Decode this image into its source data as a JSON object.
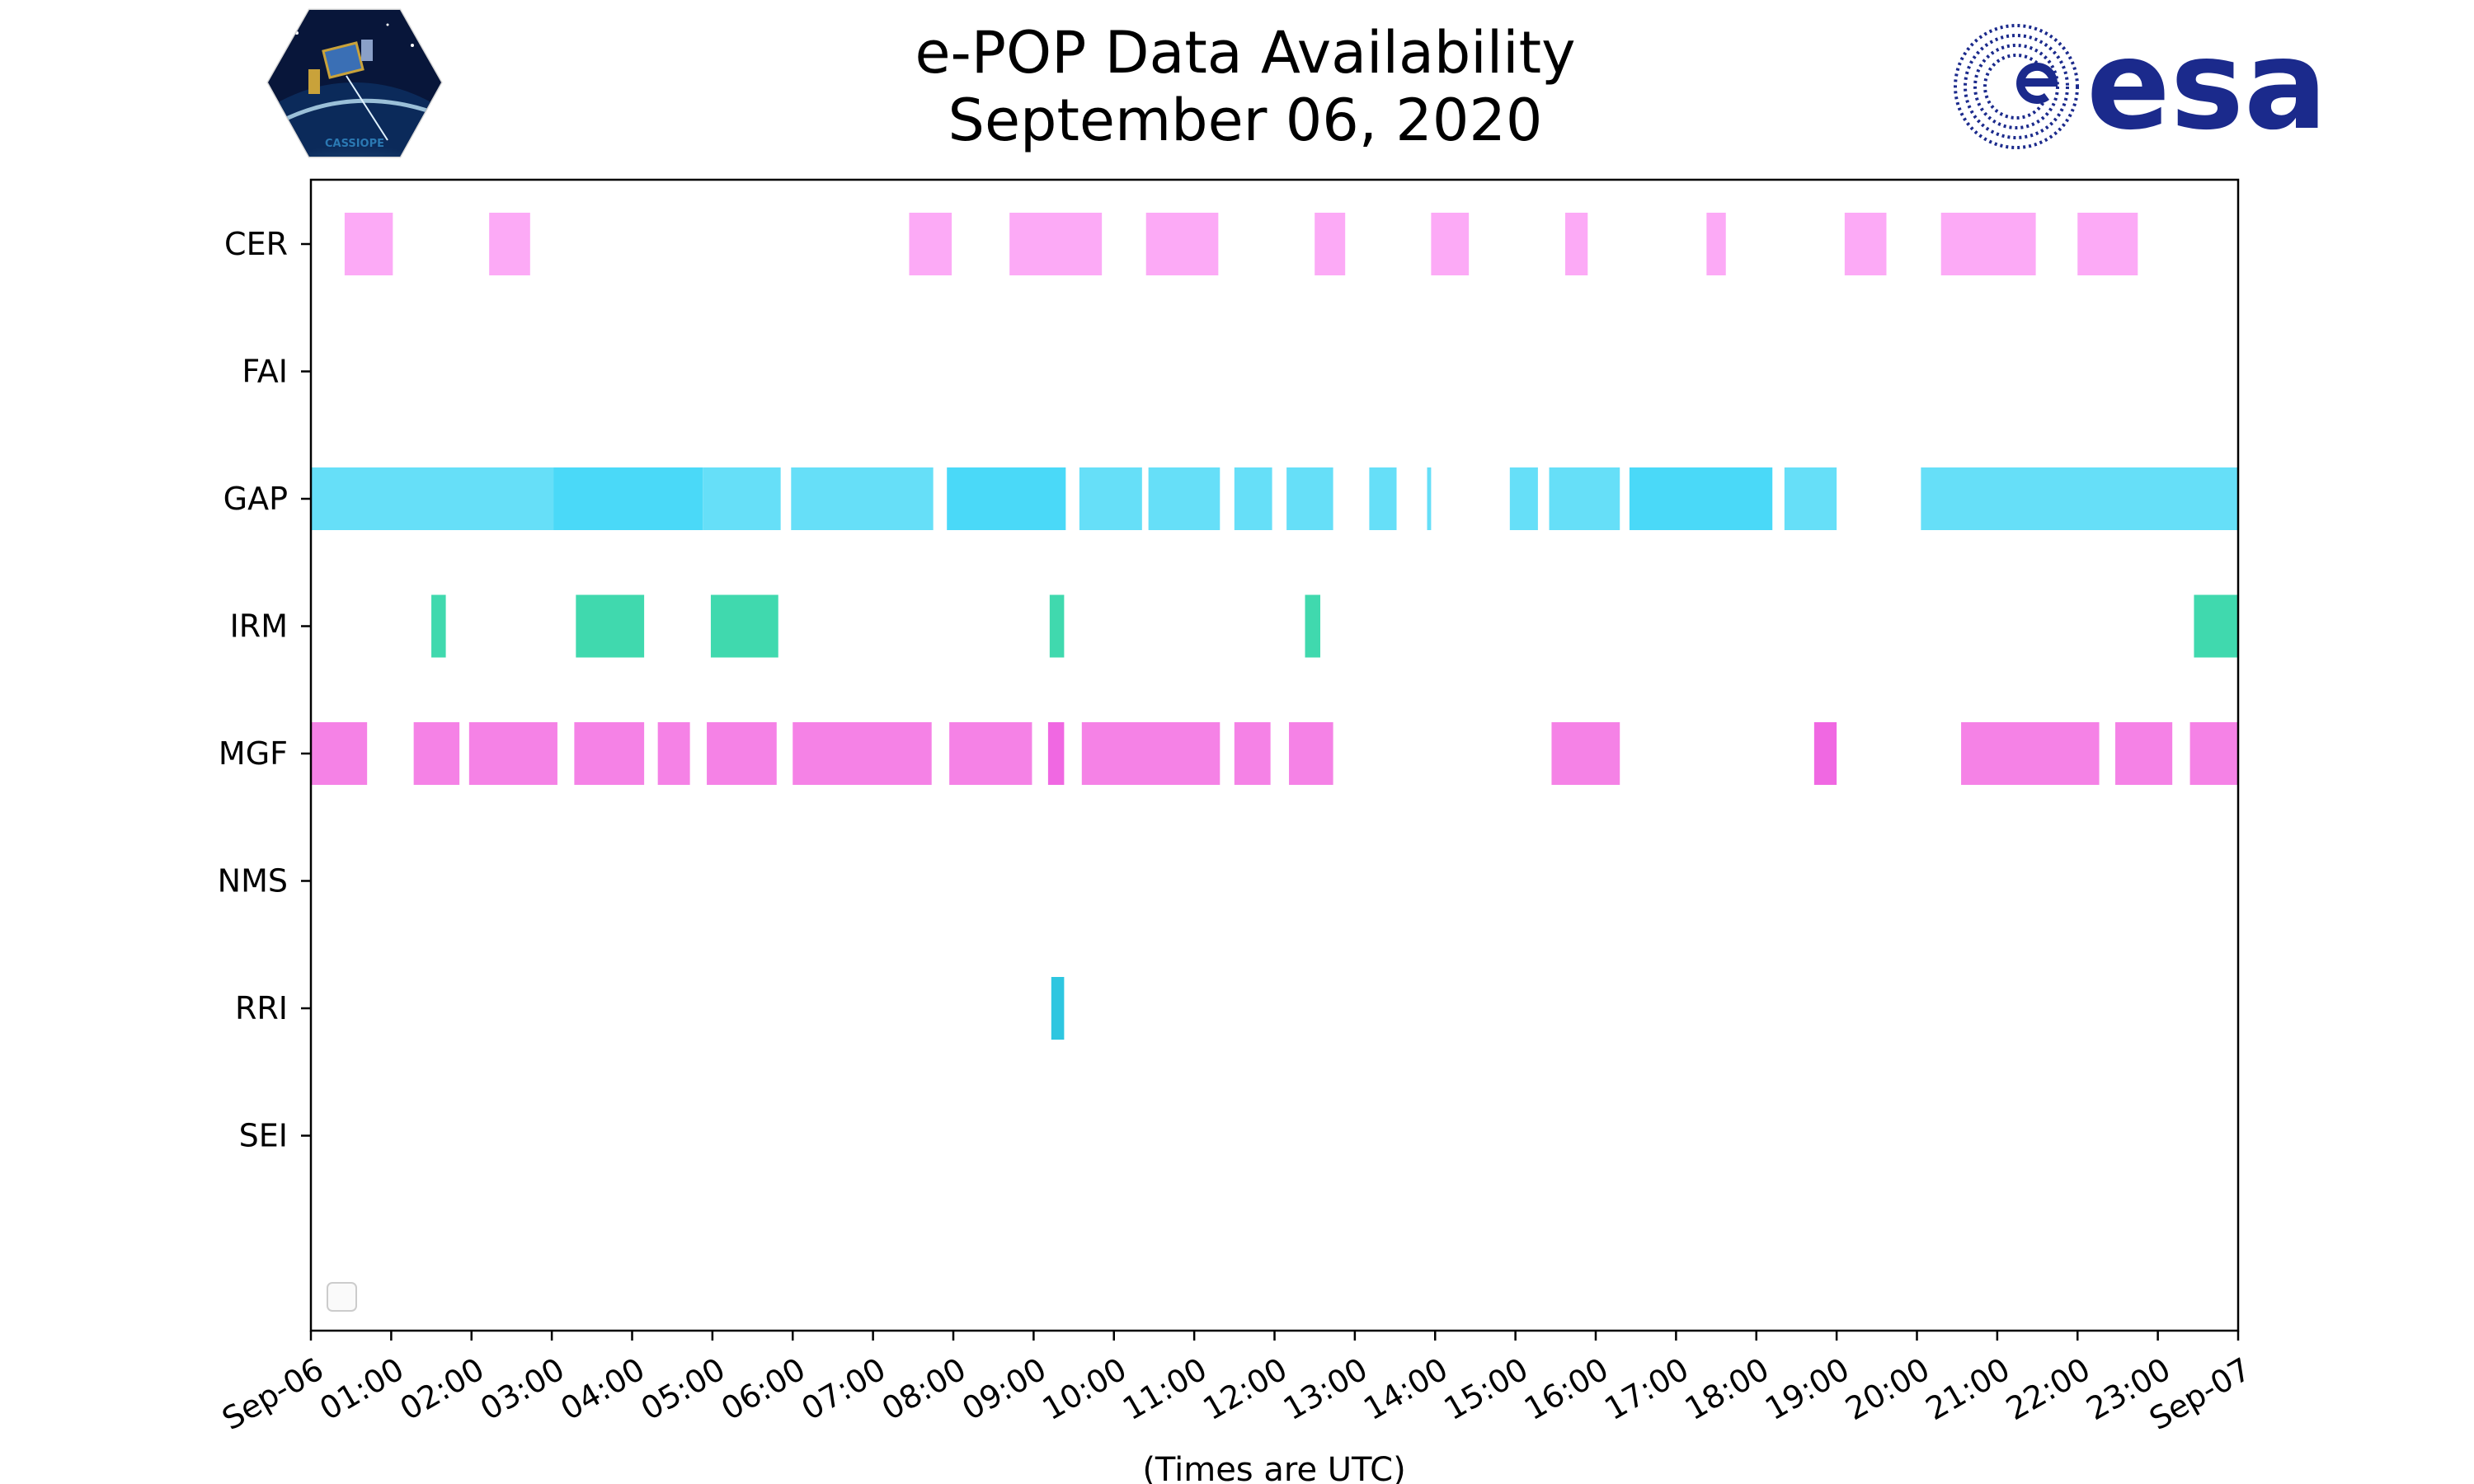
{
  "chart_data": {
    "type": "timeline",
    "title": [
      "e-POP Data Availability",
      "September 06, 2020"
    ],
    "xlabel": "(Times are UTC)",
    "x_unit": "hours since 2020-09-06 00:00 UTC",
    "xlim": [
      0,
      24
    ],
    "xticks": [
      "Sep-06",
      "01:00",
      "02:00",
      "03:00",
      "04:00",
      "05:00",
      "06:00",
      "07:00",
      "08:00",
      "09:00",
      "10:00",
      "11:00",
      "12:00",
      "13:00",
      "14:00",
      "15:00",
      "16:00",
      "17:00",
      "18:00",
      "19:00",
      "20:00",
      "21:00",
      "22:00",
      "23:00",
      "Sep-07"
    ],
    "categories": [
      "CER",
      "FAI",
      "GAP",
      "IRM",
      "MGF",
      "NMS",
      "RRI",
      "SEI"
    ],
    "legend": "lower-left (empty)",
    "series": [
      {
        "name": "CER",
        "color": "#fcaaf6",
        "intervals": [
          {
            "start": 0.42,
            "end": 1.02
          },
          {
            "start": 2.22,
            "end": 2.73
          },
          {
            "start": 7.45,
            "end": 7.98
          },
          {
            "start": 8.7,
            "end": 9.85
          },
          {
            "start": 10.4,
            "end": 11.3
          },
          {
            "start": 12.5,
            "end": 12.88
          },
          {
            "start": 13.95,
            "end": 14.42
          },
          {
            "start": 15.62,
            "end": 15.9
          },
          {
            "start": 17.38,
            "end": 17.62
          },
          {
            "start": 19.1,
            "end": 19.62
          },
          {
            "start": 20.3,
            "end": 21.48
          },
          {
            "start": 22.0,
            "end": 22.75
          }
        ]
      },
      {
        "name": "FAI",
        "color": "#9ad9f0",
        "intervals": []
      },
      {
        "name": "GAP",
        "color": "#66dff8",
        "intervals": [
          {
            "start": 0.0,
            "end": 3.02
          },
          {
            "start": 3.02,
            "end": 4.88,
            "color": "#4ad9f8"
          },
          {
            "start": 4.88,
            "end": 5.85
          },
          {
            "start": 5.98,
            "end": 7.75
          },
          {
            "start": 7.92,
            "end": 9.4,
            "color": "#4ad9f8"
          },
          {
            "start": 9.57,
            "end": 10.35
          },
          {
            "start": 10.43,
            "end": 11.32
          },
          {
            "start": 11.5,
            "end": 11.97
          },
          {
            "start": 12.15,
            "end": 12.73
          },
          {
            "start": 13.18,
            "end": 13.52
          },
          {
            "start": 13.9,
            "end": 13.95
          },
          {
            "start": 14.93,
            "end": 15.28
          },
          {
            "start": 15.42,
            "end": 16.3
          },
          {
            "start": 16.42,
            "end": 18.2,
            "color": "#4ad9f8"
          },
          {
            "start": 18.35,
            "end": 19.0
          },
          {
            "start": 20.05,
            "end": 24.0
          }
        ]
      },
      {
        "name": "IRM",
        "color": "#40d9ae",
        "intervals": [
          {
            "start": 1.5,
            "end": 1.68
          },
          {
            "start": 3.3,
            "end": 4.15
          },
          {
            "start": 4.98,
            "end": 5.82
          },
          {
            "start": 9.2,
            "end": 9.38
          },
          {
            "start": 12.38,
            "end": 12.57
          },
          {
            "start": 23.45,
            "end": 24.0
          }
        ]
      },
      {
        "name": "MGF",
        "color": "#f582e6",
        "intervals": [
          {
            "start": 0.0,
            "end": 0.7
          },
          {
            "start": 1.28,
            "end": 1.85
          },
          {
            "start": 1.97,
            "end": 3.07
          },
          {
            "start": 3.28,
            "end": 4.15
          },
          {
            "start": 4.32,
            "end": 4.72
          },
          {
            "start": 4.93,
            "end": 5.8
          },
          {
            "start": 6.0,
            "end": 7.73
          },
          {
            "start": 7.95,
            "end": 8.98
          },
          {
            "start": 9.18,
            "end": 9.38,
            "color": "#f068e2"
          },
          {
            "start": 9.6,
            "end": 11.32
          },
          {
            "start": 11.5,
            "end": 11.95
          },
          {
            "start": 12.18,
            "end": 12.73
          },
          {
            "start": 15.45,
            "end": 16.3
          },
          {
            "start": 18.72,
            "end": 19.0,
            "color": "#f068e2"
          },
          {
            "start": 20.55,
            "end": 22.27
          },
          {
            "start": 22.47,
            "end": 23.18
          },
          {
            "start": 23.4,
            "end": 24.0
          }
        ]
      },
      {
        "name": "NMS",
        "color": "#bbbbbb",
        "intervals": []
      },
      {
        "name": "RRI",
        "color": "#2ec6e0",
        "intervals": [
          {
            "start": 9.22,
            "end": 9.38
          }
        ]
      },
      {
        "name": "SEI",
        "color": "#cccccc",
        "intervals": []
      }
    ]
  },
  "logos": {
    "cassiope": {
      "caption": "CASSIOPE"
    },
    "esa": {
      "wordmark": "esa",
      "color": "#1b2a8c"
    }
  }
}
